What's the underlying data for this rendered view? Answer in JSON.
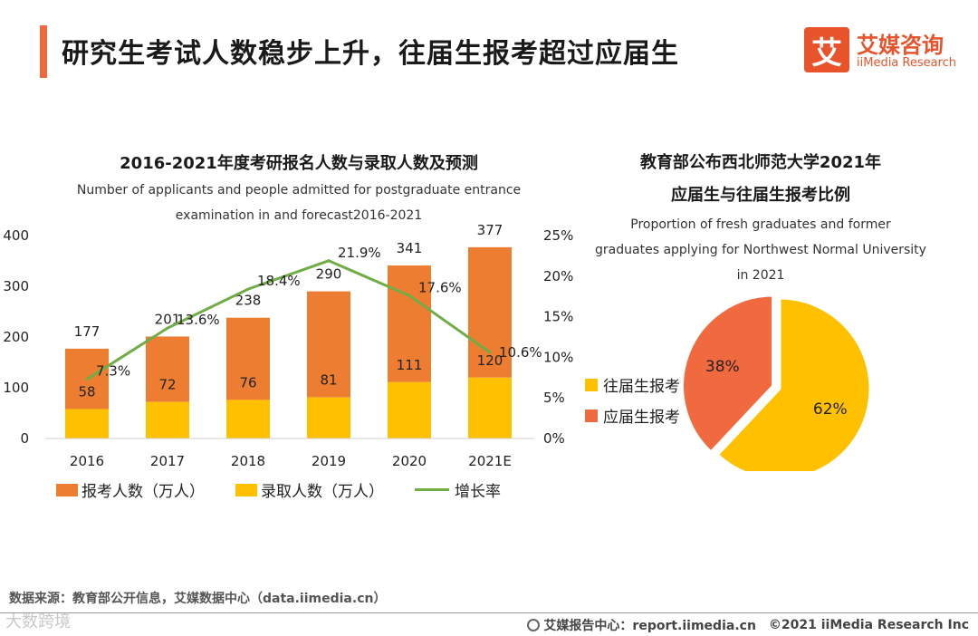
{
  "header": {
    "title": "研究生考试人数稳步上升，往届生报考超过应届生",
    "logo_mark": "艾",
    "logo_cn": "艾媒咨询",
    "logo_en": "iiMedia Research"
  },
  "colors": {
    "applicants": "#ed7d31",
    "admitted": "#ffc000",
    "growth": "#70ad47",
    "accent": "#ee6a3c"
  },
  "chart_data": [
    {
      "type": "bar",
      "title": "2016-2021年度考研报名人数与录取人数及预测",
      "subtitle_line1": "Number of applicants and people admitted for postgraduate entrance",
      "subtitle_line2": "examination in and forecast2016-2021",
      "categories": [
        "2016",
        "2017",
        "2018",
        "2019",
        "2020",
        "2021E"
      ],
      "series": [
        {
          "name": "报考人数（万人）",
          "values": [
            177,
            201,
            238,
            290,
            341,
            377
          ]
        },
        {
          "name": "录取人数（万人）",
          "values": [
            58,
            72,
            76,
            81,
            111,
            120
          ]
        },
        {
          "name": "增长率",
          "type": "line",
          "axis": "right",
          "values": [
            7.3,
            13.6,
            18.4,
            21.9,
            17.6,
            10.6
          ],
          "labels": [
            "7.3%",
            "13.6%",
            "18.4%",
            "21.9%",
            "17.6%",
            "10.6%"
          ]
        }
      ],
      "ylim": [
        0,
        400
      ],
      "yticks": [
        "0",
        "100",
        "200",
        "300",
        "400"
      ],
      "y2lim": [
        0,
        25
      ],
      "y2ticks": [
        "0%",
        "5%",
        "10%",
        "15%",
        "20%",
        "25%"
      ],
      "grid": false,
      "legend": "bottom"
    },
    {
      "type": "pie",
      "title_line1": "教育部公布西北师范大学2021年",
      "title_line2": "应届生与往届生报考比例",
      "subtitle_line1": "Proportion of fresh graduates and former",
      "subtitle_line2": "graduates applying for Northwest Normal University",
      "subtitle_line3": "in 2021",
      "slices": [
        {
          "name": "往届生报考",
          "value": 62,
          "label": "62%"
        },
        {
          "name": "应届生报考",
          "value": 38,
          "label": "38%"
        }
      ],
      "legend": "left"
    }
  ],
  "footer": {
    "source": "数据来源：教育部公开信息，艾媒数据中心（data.iimedia.cn）",
    "watermark": "大数跨境",
    "report_center": "艾媒报告中心：report.iimedia.cn",
    "copyright": "©2021  iiMedia Research  Inc"
  }
}
